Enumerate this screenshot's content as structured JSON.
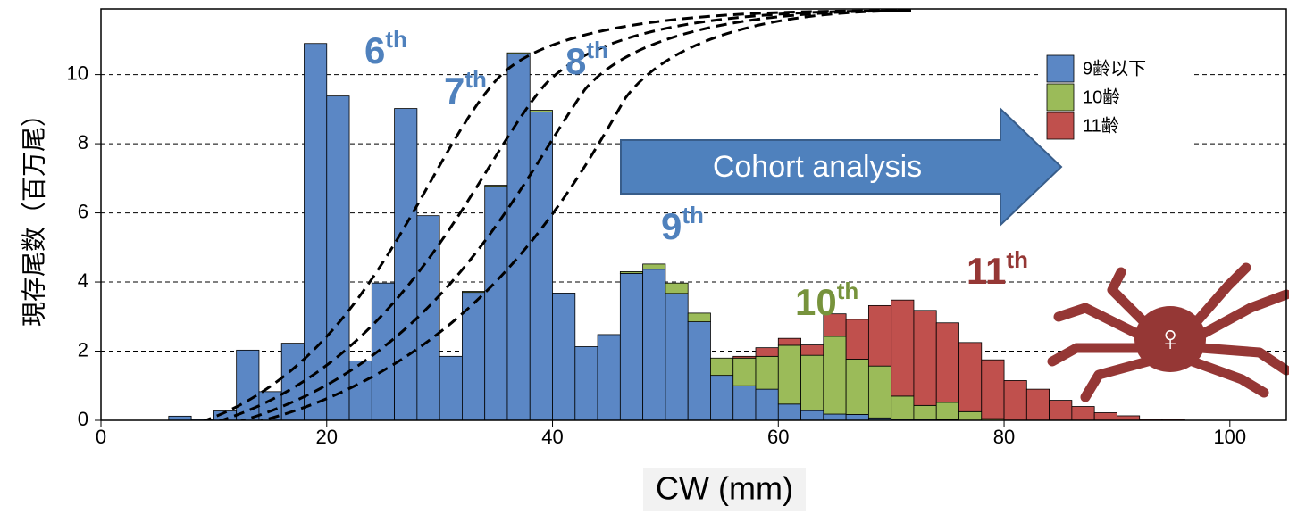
{
  "chart_data": {
    "type": "histogram",
    "xlabel": "CW (mm)",
    "ylabel": "現存尾数（百万尾）",
    "bins": [
      6,
      8,
      10,
      12,
      14,
      16,
      18,
      20,
      22,
      24,
      26,
      28,
      30,
      32,
      34,
      36,
      38,
      40,
      42,
      44,
      46,
      48,
      50,
      52,
      54,
      56,
      58,
      60,
      62,
      64,
      66,
      68,
      70,
      72,
      74,
      76,
      78,
      80,
      82,
      84,
      86,
      88,
      90,
      92,
      94,
      96
    ],
    "series": [
      {
        "name": "9齢以下",
        "color": "#5b87c5",
        "values": [
          0.12,
          0.03,
          0.27,
          2.03,
          0.83,
          2.23,
          10.9,
          9.38,
          1.72,
          3.97,
          9.02,
          5.92,
          1.85,
          3.7,
          6.77,
          10.6,
          8.92,
          3.68,
          2.13,
          2.48,
          4.25,
          4.37,
          3.67,
          2.85,
          1.3,
          1.0,
          0.9,
          0.47,
          0.28,
          0.18,
          0.17,
          0.07,
          0.03,
          0.03,
          0.02,
          0,
          0,
          0,
          0,
          0,
          0,
          0,
          0,
          0,
          0
        ]
      },
      {
        "name": "10齢",
        "color": "#9bbb59",
        "values": [
          0,
          0,
          0,
          0,
          0,
          0,
          0,
          0,
          0,
          0,
          0,
          0,
          0,
          0.03,
          0.03,
          0.03,
          0.05,
          0,
          0,
          0,
          0.05,
          0.15,
          0.3,
          0.25,
          0.5,
          0.8,
          0.95,
          1.7,
          1.6,
          2.25,
          1.6,
          1.5,
          0.67,
          0.4,
          0.5,
          0.25,
          0.05,
          0,
          0,
          0,
          0,
          0,
          0,
          0,
          0
        ]
      },
      {
        "name": "11齢",
        "color": "#c0504d",
        "values": [
          0,
          0,
          0,
          0,
          0,
          0,
          0,
          0,
          0,
          0,
          0,
          0,
          0,
          0,
          0,
          0,
          0,
          0,
          0,
          0,
          0,
          0,
          0,
          0,
          0,
          0.05,
          0.25,
          0.2,
          0.3,
          0.65,
          1.15,
          1.75,
          2.78,
          2.75,
          2.3,
          2.0,
          1.7,
          1.15,
          0.9,
          0.58,
          0.4,
          0.22,
          0.13,
          0.03,
          0.03
        ]
      }
    ],
    "xlim": [
      0,
      105
    ],
    "xticks": [
      0,
      20,
      40,
      60,
      80,
      100
    ],
    "ylim": [
      0,
      11.9
    ],
    "yticks": [
      0,
      2,
      4,
      6,
      8,
      10
    ],
    "grid": true,
    "legend": "upper right",
    "annotations": [
      {
        "text": "6",
        "sup": "th",
        "color": "#4f81bd"
      },
      {
        "text": "7",
        "sup": "th",
        "color": "#4f81bd"
      },
      {
        "text": "8",
        "sup": "th",
        "color": "#4f81bd"
      },
      {
        "text": "9",
        "sup": "th",
        "color": "#4f81bd"
      },
      {
        "text": "10",
        "sup": "th",
        "color": "#77933c"
      },
      {
        "text": "11",
        "sup": "th",
        "color": "#953735"
      }
    ],
    "arrow_text": "Cohort analysis",
    "crab_symbol": "♀"
  }
}
